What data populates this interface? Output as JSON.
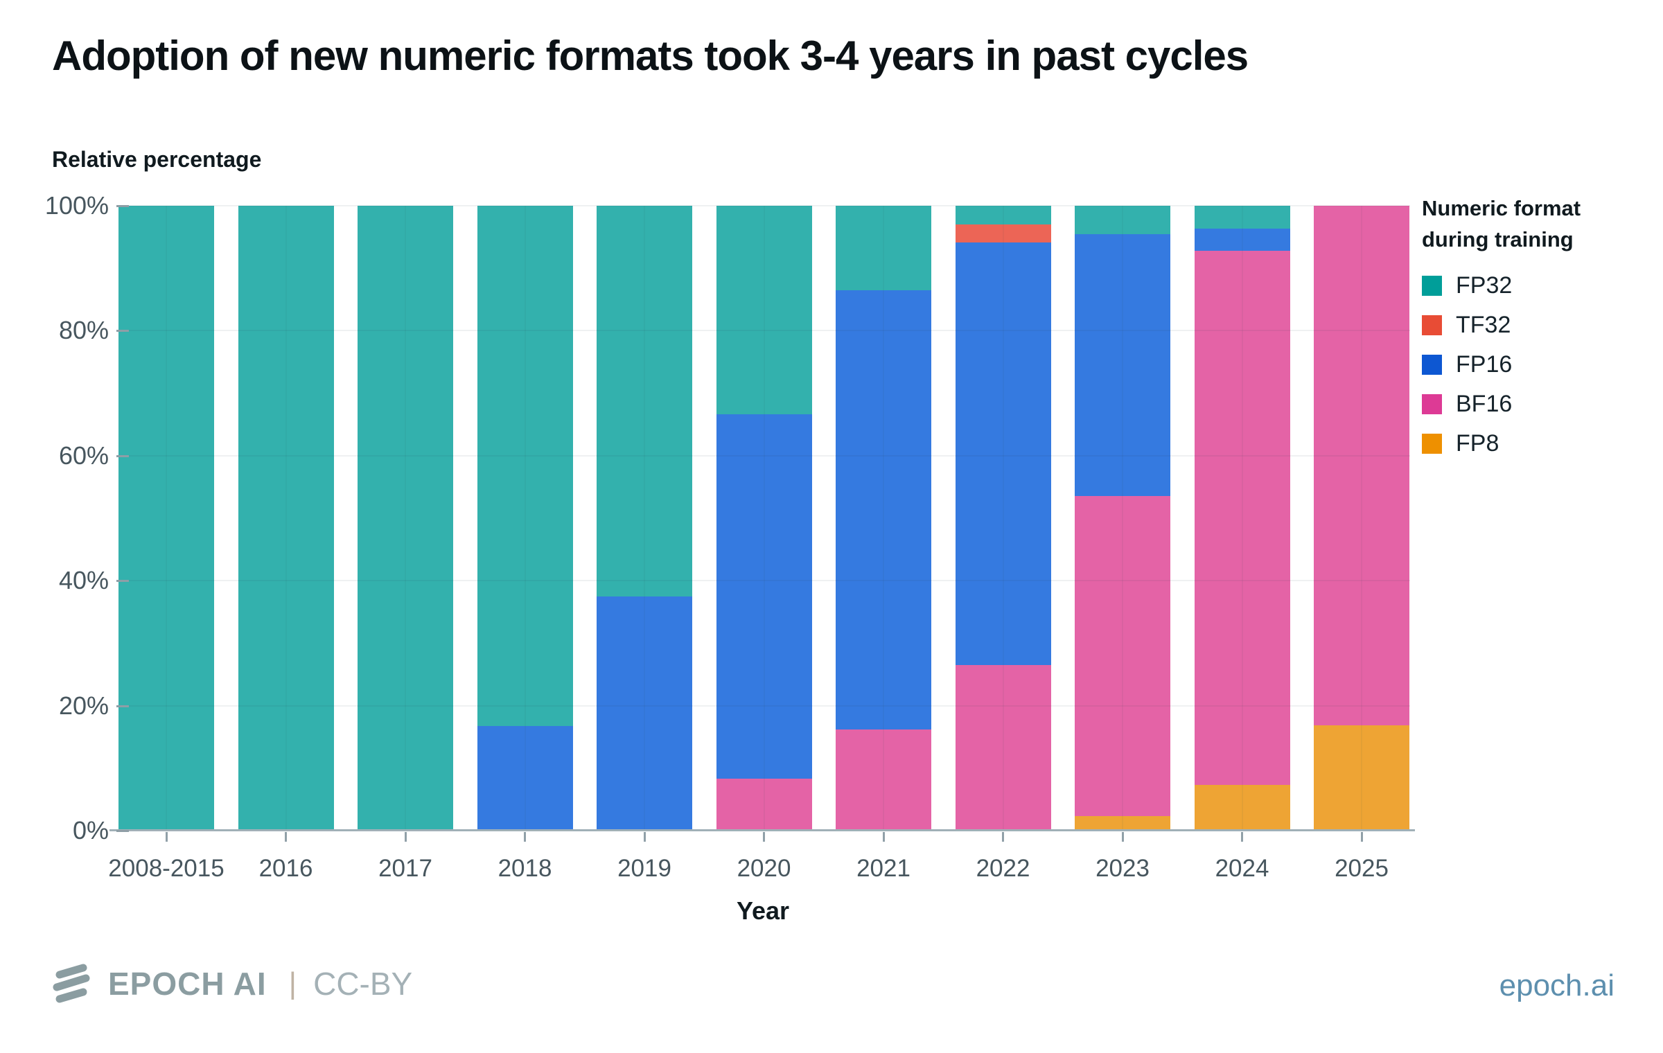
{
  "title": "Adoption of new numeric formats took 3-4 years in past cycles",
  "chart_data": {
    "type": "bar",
    "stacked": true,
    "title": "Adoption of new numeric formats took 3-4 years in past cycles",
    "ylabel_top": "Relative percentage",
    "xlabel": "Year",
    "categories": [
      "2008-2015",
      "2016",
      "2017",
      "2018",
      "2019",
      "2020",
      "2021",
      "2022",
      "2023",
      "2024",
      "2025"
    ],
    "y_ticks": {
      "labels": [
        "0%",
        "20%",
        "40%",
        "60%",
        "80%",
        "100%"
      ],
      "values": [
        0,
        20,
        40,
        60,
        80,
        100
      ]
    },
    "ylim": [
      0,
      100
    ],
    "grid": "on",
    "legend": {
      "position": "right",
      "title_lines": [
        "Numeric format",
        "during training"
      ]
    },
    "stack_order_bottom_to_top": [
      "FP8",
      "BF16",
      "FP16",
      "TF32",
      "FP32"
    ],
    "series": [
      {
        "name": "FP32",
        "color": "#009e99",
        "bar_color": "#33b1ad",
        "values": [
          100,
          100,
          100,
          83.3,
          62.5,
          33.4,
          13.5,
          3.0,
          4.5,
          3.7,
          0
        ]
      },
      {
        "name": "TF32",
        "color": "#e84c35",
        "bar_color": "#ec6556",
        "values": [
          0,
          0,
          0,
          0,
          0,
          0,
          0,
          2.9,
          0,
          0,
          0
        ]
      },
      {
        "name": "FP16",
        "color": "#0d57d2",
        "bar_color": "#357ae0",
        "values": [
          0,
          0,
          0,
          16.7,
          37.5,
          58.3,
          70.3,
          67.6,
          42.0,
          3.5,
          0
        ]
      },
      {
        "name": "BF16",
        "color": "#dd3a95",
        "bar_color": "#e463a6",
        "values": [
          0,
          0,
          0,
          0,
          0,
          8.3,
          16.2,
          26.5,
          51.2,
          85.5,
          83.1
        ]
      },
      {
        "name": "FP8",
        "color": "#ee9000",
        "bar_color": "#eea434",
        "values": [
          0,
          0,
          0,
          0,
          0,
          0,
          0,
          0,
          2.3,
          7.3,
          16.9
        ]
      }
    ]
  },
  "footer": {
    "brand": "EPOCH AI",
    "separator": "|",
    "license": "CC-BY",
    "site": "epoch.ai"
  }
}
